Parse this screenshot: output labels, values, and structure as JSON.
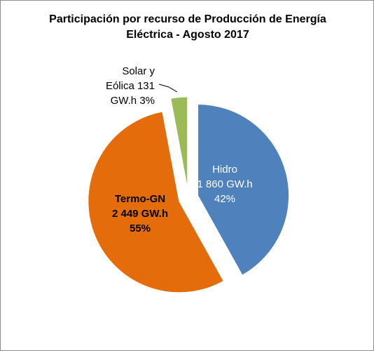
{
  "chart_data": {
    "type": "pie",
    "title_lines": [
      "Participación por recurso de Producción de Energía",
      "Eléctrica - Agosto 2017"
    ],
    "slices": [
      {
        "label": "Hidro",
        "value_text": "1 860 GW.h",
        "value": 1860,
        "unit": "GW.h",
        "percent": 42,
        "percent_text": "42%",
        "color": "#4f81bd",
        "exploded": true
      },
      {
        "label": "Termo-GN",
        "value_text": "2 449 GW.h",
        "value": 2449,
        "unit": "GW.h",
        "percent": 55,
        "percent_text": "55%",
        "color": "#e46c0a",
        "exploded": true
      },
      {
        "label": "Solar y Eólica",
        "value_text": "131 GW.h",
        "value": 131,
        "unit": "GW.h",
        "percent": 3,
        "percent_text": "3%",
        "color": "#9bbb59",
        "exploded": true
      }
    ],
    "legend": "none"
  },
  "labels": {
    "hidro": {
      "line1": "Hidro",
      "line2": "1 860 GW.h",
      "line3": "42%"
    },
    "termo": {
      "line1": "Termo-GN",
      "line2": "2 449 GW.h",
      "line3": "55%"
    },
    "solar": {
      "line1": "Solar y",
      "line2": "Eólica    131",
      "line3": "GW.h  3%"
    }
  }
}
